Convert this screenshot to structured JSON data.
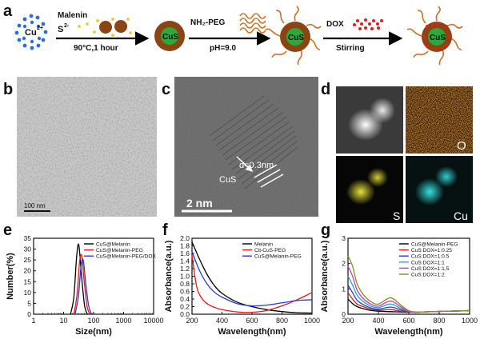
{
  "panel_labels": {
    "a": "a",
    "b": "b",
    "c": "c",
    "d": "d",
    "e": "e",
    "f": "f",
    "g": "g"
  },
  "scheme": {
    "cu_label": "Cu",
    "cu_charge": "2+",
    "malenin_label": "Malenin",
    "s_label": "S",
    "s_charge": "2-",
    "cond1": "90°C,1 hour",
    "cus_core": "CuS",
    "peg_label": "NH₂-PEG",
    "ph_label": "pH=9.0",
    "dox_label": "DOX",
    "stirring_label": "Stirring"
  },
  "tem_b": {
    "scale": "100 nm"
  },
  "tem_c": {
    "d_label": "d=0.3nm",
    "cus_label": "CuS",
    "scale": "2 nm"
  },
  "eds_d": {
    "o_label": "O",
    "s_label": "S",
    "cu_label": "Cu"
  },
  "chart_data": [
    {
      "panel": "e",
      "type": "line",
      "xlabel": "Size(nm)",
      "ylabel": "Number(%)",
      "xscale": "log",
      "xlim": [
        1,
        10000
      ],
      "ylim": [
        0,
        35
      ],
      "xticks": [
        1,
        10,
        100,
        1000,
        10000
      ],
      "xtick_labels": [
        "1",
        "10",
        "100",
        "1000",
        "10000"
      ],
      "yticks": [
        0,
        5,
        10,
        15,
        20,
        25,
        30,
        35
      ],
      "legend_position": "top-right",
      "series": [
        {
          "name": "CuS@Melanin",
          "color": "#000000",
          "x": [
            17,
            22,
            27,
            32,
            40,
            50,
            62
          ],
          "y": [
            0,
            8,
            26,
            32,
            17,
            4,
            0
          ]
        },
        {
          "name": "CuS@Melanin-PEG",
          "color": "#e01b1b",
          "x": [
            22,
            28,
            34,
            40,
            48,
            60,
            75
          ],
          "y": [
            0,
            9,
            24,
            27,
            16,
            4,
            0
          ]
        },
        {
          "name": "CuS@Melanin-PEG/DOX",
          "color": "#2a3bd6",
          "x": [
            24,
            31,
            38,
            45,
            54,
            68,
            85
          ],
          "y": [
            0,
            8,
            22,
            25,
            15,
            4,
            0
          ]
        }
      ]
    },
    {
      "panel": "f",
      "type": "line",
      "xlabel": "Wavelength(nm)",
      "ylabel": "Absorbance(a.u.)",
      "xlim": [
        200,
        1000
      ],
      "ylim": [
        0.0,
        2.0
      ],
      "xticks": [
        200,
        400,
        600,
        800,
        1000
      ],
      "yticks": [
        0.0,
        0.2,
        0.4,
        0.6,
        0.8,
        1.0,
        1.2,
        1.4,
        1.6,
        1.8,
        2.0
      ],
      "legend_position": "top-right",
      "series": [
        {
          "name": "Melanin",
          "color": "#000000",
          "x": [
            200,
            250,
            300,
            350,
            400,
            500,
            600,
            700,
            800,
            900,
            1000
          ],
          "y": [
            1.9,
            1.45,
            1.05,
            0.75,
            0.55,
            0.32,
            0.2,
            0.12,
            0.07,
            0.04,
            0.03
          ]
        },
        {
          "name": "Cit-CuS-PEG",
          "color": "#e01b1b",
          "x": [
            200,
            230,
            260,
            300,
            350,
            400,
            500,
            600,
            700,
            800,
            900,
            1000
          ],
          "y": [
            1.55,
            0.75,
            0.45,
            0.28,
            0.18,
            0.12,
            0.06,
            0.05,
            0.1,
            0.22,
            0.38,
            0.57
          ]
        },
        {
          "name": "CuS@Melanin-PEG",
          "color": "#2a3bd6",
          "x": [
            200,
            250,
            300,
            350,
            400,
            500,
            600,
            700,
            800,
            900,
            1000
          ],
          "y": [
            1.65,
            1.15,
            0.8,
            0.58,
            0.45,
            0.28,
            0.22,
            0.24,
            0.3,
            0.36,
            0.38
          ]
        }
      ]
    },
    {
      "panel": "g",
      "type": "line",
      "xlabel": "Wavelength(nm)",
      "ylabel": "Absorbance(a.u.)",
      "xlim": [
        200,
        1000
      ],
      "ylim": [
        0,
        3
      ],
      "xticks": [
        200,
        400,
        600,
        800,
        1000
      ],
      "yticks": [
        0,
        1,
        2,
        3
      ],
      "legend_position": "top-right",
      "series": [
        {
          "name": "CuS@Melanin-PEG",
          "color": "#000000",
          "x": [
            200,
            230,
            260,
            300,
            350,
            400,
            480,
            550,
            600,
            650,
            700,
            800,
            1000
          ],
          "y": [
            0.6,
            0.42,
            0.3,
            0.22,
            0.15,
            0.12,
            0.1,
            0.09,
            0.08,
            0.08,
            0.09,
            0.11,
            0.14
          ]
        },
        {
          "name": "CuS:DOX=1:0.25",
          "color": "#e01b1b",
          "x": [
            200,
            230,
            260,
            300,
            350,
            400,
            480,
            550,
            600,
            650,
            700,
            800,
            1000
          ],
          "y": [
            0.85,
            0.6,
            0.4,
            0.3,
            0.2,
            0.16,
            0.18,
            0.12,
            0.09,
            0.08,
            0.09,
            0.11,
            0.14
          ]
        },
        {
          "name": "CuS:DOX=1:0.5",
          "color": "#2a3bd6",
          "x": [
            200,
            230,
            260,
            300,
            350,
            400,
            480,
            550,
            600,
            650,
            700,
            800,
            1000
          ],
          "y": [
            1.15,
            0.85,
            0.55,
            0.38,
            0.25,
            0.2,
            0.28,
            0.17,
            0.1,
            0.08,
            0.09,
            0.11,
            0.14
          ]
        },
        {
          "name": "CuS:DOX=1:1",
          "color": "#29a3c7",
          "x": [
            200,
            230,
            260,
            300,
            350,
            400,
            480,
            550,
            600,
            650,
            700,
            800,
            1000
          ],
          "y": [
            1.5,
            1.15,
            0.75,
            0.5,
            0.32,
            0.26,
            0.4,
            0.22,
            0.11,
            0.08,
            0.09,
            0.11,
            0.14
          ]
        },
        {
          "name": "CuS:DOX=1:1.5",
          "color": "#c13bc1",
          "x": [
            200,
            230,
            260,
            300,
            350,
            400,
            480,
            550,
            600,
            650,
            700,
            800,
            1000
          ],
          "y": [
            1.9,
            1.5,
            0.95,
            0.62,
            0.4,
            0.32,
            0.52,
            0.28,
            0.12,
            0.08,
            0.09,
            0.11,
            0.14
          ]
        },
        {
          "name": "CuS:DOX=1:2",
          "color": "#8c8c1c",
          "x": [
            200,
            230,
            260,
            300,
            350,
            400,
            480,
            550,
            600,
            650,
            700,
            800,
            1000
          ],
          "y": [
            2.3,
            1.9,
            1.2,
            0.78,
            0.5,
            0.4,
            0.65,
            0.35,
            0.14,
            0.09,
            0.09,
            0.11,
            0.14
          ]
        }
      ]
    }
  ]
}
